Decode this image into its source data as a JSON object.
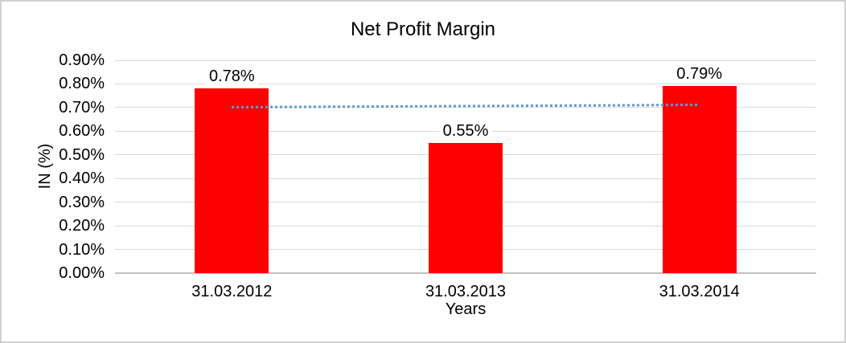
{
  "window": {
    "background_color": "#ffffff",
    "border_color": "#d0d0d0"
  },
  "chart_data": {
    "type": "bar",
    "title": "Net Profit Margin",
    "xlabel": "Years",
    "ylabel": "IN (%)",
    "categories": [
      "31.03.2012",
      "31.03.2013",
      "31.03.2014"
    ],
    "values": [
      0.78,
      0.55,
      0.79
    ],
    "data_labels": [
      "0.78%",
      "0.55%",
      "0.79%"
    ],
    "ylim": [
      0,
      0.9
    ],
    "ytick_values": [
      0,
      0.1,
      0.2,
      0.3,
      0.4,
      0.5,
      0.6,
      0.7,
      0.8,
      0.9
    ],
    "yticks": [
      "0.00%",
      "0.10%",
      "0.20%",
      "0.30%",
      "0.40%",
      "0.50%",
      "0.60%",
      "0.70%",
      "0.80%",
      "0.90%"
    ],
    "grid": true,
    "legend": "none",
    "bar_color": "#ff0000",
    "gridline_color": "#d9d9d9",
    "axis_line_color": "#bfbfbf",
    "text_color": "#000000",
    "trendline": {
      "type": "linear",
      "style": "dotted",
      "color": "#5b9bd5",
      "start_value": 0.7,
      "end_value": 0.71
    }
  }
}
